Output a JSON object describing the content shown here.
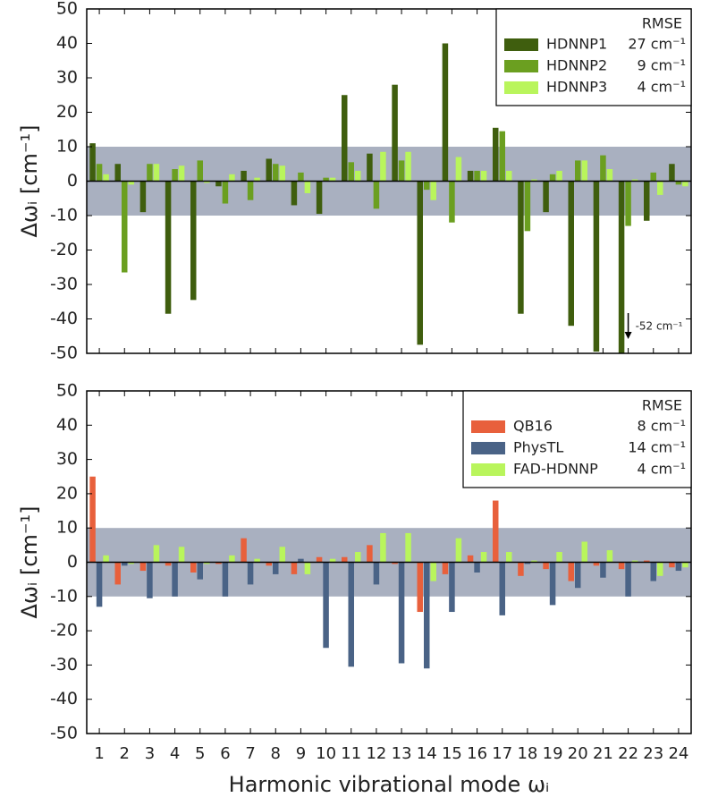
{
  "chart_data": [
    {
      "type": "bar",
      "categories": [
        null,
        null,
        null,
        null,
        null,
        null,
        null,
        null,
        null,
        null,
        null,
        null,
        null,
        null,
        null,
        null,
        null,
        null,
        null,
        null,
        null,
        null,
        null,
        null
      ],
      "ylabel": "Δωᵢ [cm⁻¹]",
      "ylim": [
        -50,
        50
      ],
      "yticks": [
        -50,
        -40,
        -30,
        -20,
        -10,
        0,
        10,
        20,
        30,
        40,
        50
      ],
      "band": [
        -10,
        10
      ],
      "band_color": "#a9b0c0",
      "legend_header": "RMSE",
      "legend": "upper right",
      "annotation": "-52 cm⁻¹",
      "series": [
        {
          "name": "HDNNP1",
          "rmse": "27 cm⁻¹",
          "color": "#3f5e0e",
          "values": [
            11,
            5,
            -9,
            -38.5,
            -34.5,
            -1.5,
            3,
            6.5,
            -7,
            -9.5,
            25,
            8,
            28,
            -47.5,
            40,
            3,
            15.5,
            -38.5,
            -9,
            -42,
            -49.5,
            -52,
            -11.5,
            5
          ]
        },
        {
          "name": "HDNNP2",
          "rmse": "9 cm⁻¹",
          "color": "#6b9f20",
          "values": [
            5,
            -26.5,
            5,
            3.5,
            6,
            -6.5,
            -5.5,
            5,
            2.5,
            1,
            5.5,
            -8,
            6,
            -2.5,
            -12,
            3,
            14.5,
            -14.5,
            2,
            6,
            7.5,
            -13,
            2.5,
            -1
          ]
        },
        {
          "name": "HDNNP3",
          "rmse": "4 cm⁻¹",
          "color": "#b9f55c",
          "values": [
            2,
            -1,
            5,
            4.5,
            -0.5,
            2,
            1,
            4.5,
            -3.5,
            1,
            3,
            8.5,
            8.5,
            -5.5,
            7,
            3,
            3,
            0.5,
            3,
            6,
            3.5,
            0.5,
            -4,
            -1.5
          ]
        }
      ]
    },
    {
      "type": "bar",
      "categories": [
        "1",
        "2",
        "3",
        "4",
        "5",
        "6",
        "7",
        "8",
        "9",
        "10",
        "11",
        "12",
        "13",
        "14",
        "15",
        "16",
        "17",
        "18",
        "19",
        "20",
        "21",
        "22",
        "23",
        "24"
      ],
      "xlabel": "Harmonic vibrational mode ωᵢ",
      "ylabel": "Δωᵢ [cm⁻¹]",
      "ylim": [
        -50,
        50
      ],
      "yticks": [
        -50,
        -40,
        -30,
        -20,
        -10,
        0,
        10,
        20,
        30,
        40,
        50
      ],
      "band": [
        -10,
        10
      ],
      "band_color": "#a9b0c0",
      "legend_header": "RMSE",
      "legend": "upper right",
      "series": [
        {
          "name": "QB16",
          "rmse": "8 cm⁻¹",
          "color": "#e8603c",
          "values": [
            25,
            -6.5,
            -2.5,
            -1,
            -3,
            -0.5,
            7,
            -1,
            -3.5,
            1.5,
            1.5,
            5,
            -0.5,
            -14.5,
            -3.5,
            2,
            18,
            -4,
            -2,
            -5.5,
            -1,
            -2,
            0.5,
            -1.5
          ]
        },
        {
          "name": "PhysTL",
          "rmse": "14 cm⁻¹",
          "color": "#4a6386",
          "values": [
            -13,
            -1,
            -10.5,
            -10,
            -5,
            -10,
            -6.5,
            -3.5,
            1,
            -25,
            -30.5,
            -6.5,
            -29.5,
            -31,
            -14.5,
            -3,
            -15.5,
            -0.5,
            -12.5,
            -7.5,
            -4.5,
            -10,
            -5.5,
            -2.5
          ]
        },
        {
          "name": "FAD-HDNNP",
          "rmse": "4 cm⁻¹",
          "color": "#b9f55c",
          "values": [
            2,
            -0.5,
            5,
            4.5,
            -0.5,
            2,
            1,
            4.5,
            -3.5,
            1,
            3,
            8.5,
            8.5,
            -5.5,
            7,
            3,
            3,
            0.5,
            3,
            6,
            3.5,
            0.5,
            -4,
            -1.5
          ]
        }
      ]
    }
  ]
}
